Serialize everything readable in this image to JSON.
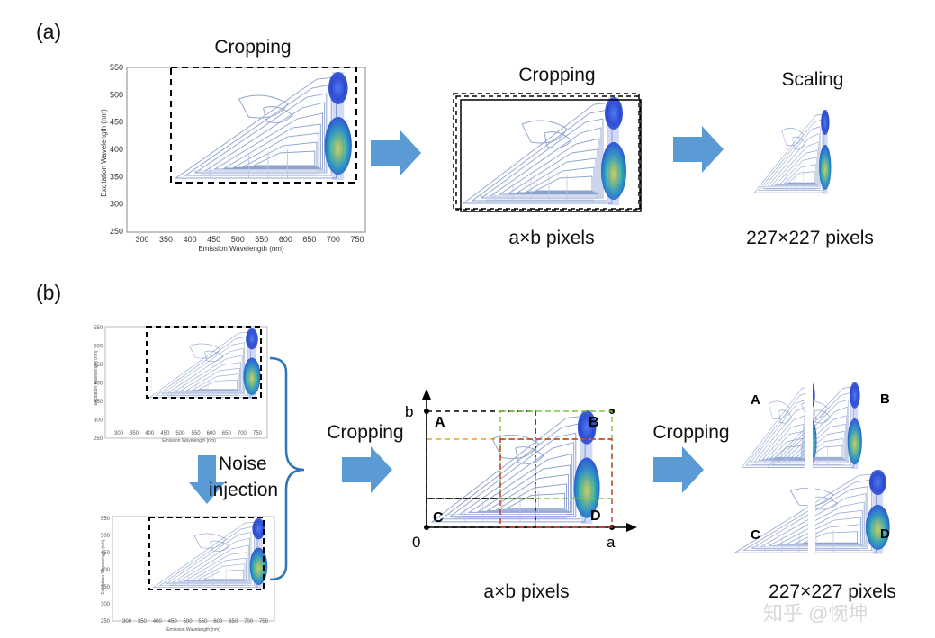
{
  "panel_a": {
    "label": "(a)",
    "crop_label_1": "Cropping",
    "crop_label_2": "Cropping",
    "scale_label": "Scaling",
    "size_ab": "a×b pixels",
    "size_227": "227×227 pixels"
  },
  "panel_b": {
    "label": "(b)",
    "noise_line1": "Noise",
    "noise_line2": "injection",
    "crop_label_1": "Cropping",
    "crop_label_2": "Cropping",
    "size_ab": "a×b pixels",
    "size_227": "227×227 pixels",
    "axis_b": "b",
    "axis_a": "a",
    "axis_0": "0",
    "region_a": "A",
    "region_b": "B",
    "region_c": "C",
    "region_d": "D",
    "tile_a": "A",
    "tile_b": "B",
    "tile_c": "C",
    "tile_d": "D"
  },
  "eem_plot": {
    "ylabel": "Excitation Wavelength (nm)",
    "xlabel": "Emission Wavelength (nm)",
    "yticks": [
      "550",
      "500",
      "450",
      "400",
      "350",
      "300",
      "250"
    ],
    "xticks": [
      "300",
      "350",
      "400",
      "450",
      "500",
      "550",
      "600",
      "650",
      "700",
      "750"
    ]
  },
  "watermark": "知乎 @惋坤",
  "colors": {
    "arrow": "#5b9bd5",
    "contour": "#8da2cf",
    "peak_blue": "#2b4fd8",
    "peak_yellow": "#f2e640",
    "crop_dash": "#000000",
    "red_dash": "#c0392b",
    "yellow_dash": "#e8a317",
    "green_dash": "#7fc241",
    "brace": "#2e75b6"
  }
}
